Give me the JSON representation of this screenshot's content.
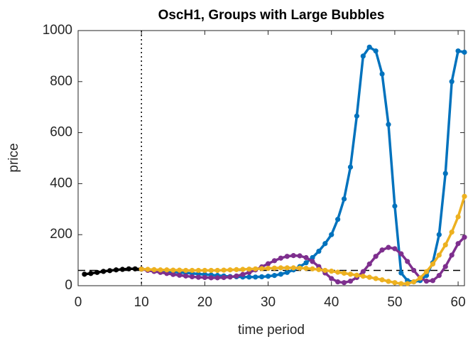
{
  "chart_data": {
    "type": "line",
    "title": "OscH1, Groups with Large Bubbles",
    "x_label": "time period",
    "y_label": "price",
    "xlim": [
      0,
      61
    ],
    "ylim": [
      0,
      1000
    ],
    "xticks": [
      0,
      10,
      20,
      30,
      40,
      50,
      60
    ],
    "yticks": [
      0,
      200,
      400,
      600,
      800,
      1000
    ],
    "reference_line": 60,
    "vertical_line": 10,
    "series": [
      {
        "color": "#000000",
        "x": [
          1,
          2,
          3,
          4,
          5,
          6,
          7,
          8,
          9,
          10
        ],
        "values": [
          45,
          48,
          52,
          56,
          59,
          62,
          64,
          66,
          66,
          65
        ]
      },
      {
        "color": "#0072BD",
        "x": [
          10,
          11,
          12,
          13,
          14,
          15,
          16,
          17,
          18,
          19,
          20,
          21,
          22,
          23,
          24,
          25,
          26,
          27,
          28,
          29,
          30,
          31,
          32,
          33,
          34,
          35,
          36,
          37,
          38,
          39,
          40,
          41,
          42,
          43,
          44,
          45,
          46,
          47,
          48,
          49,
          50,
          51,
          52,
          53,
          54,
          55,
          56,
          57,
          58,
          59,
          60,
          61
        ],
        "values": [
          65,
          62,
          60,
          58,
          56,
          54,
          52,
          50,
          48,
          46,
          44,
          42,
          40,
          38,
          36,
          35,
          34,
          34,
          34,
          35,
          37,
          40,
          45,
          52,
          62,
          75,
          90,
          110,
          135,
          165,
          200,
          260,
          340,
          465,
          665,
          900,
          935,
          920,
          830,
          632,
          312,
          50,
          20,
          15,
          20,
          40,
          90,
          200,
          440,
          800,
          920,
          915
        ]
      },
      {
        "color": "#7E2F8E",
        "x": [
          10,
          11,
          12,
          13,
          14,
          15,
          16,
          17,
          18,
          19,
          20,
          21,
          22,
          23,
          24,
          25,
          26,
          27,
          28,
          29,
          30,
          31,
          32,
          33,
          34,
          35,
          36,
          37,
          38,
          39,
          40,
          41,
          42,
          43,
          44,
          45,
          46,
          47,
          48,
          49,
          50,
          51,
          52,
          53,
          54,
          55,
          56,
          57,
          58,
          59,
          60,
          61
        ],
        "values": [
          65,
          60,
          56,
          52,
          48,
          44,
          41,
          38,
          35,
          33,
          32,
          31,
          31,
          32,
          34,
          38,
          44,
          52,
          62,
          74,
          86,
          98,
          108,
          115,
          118,
          117,
          110,
          95,
          75,
          50,
          28,
          15,
          12,
          18,
          32,
          55,
          85,
          115,
          140,
          150,
          145,
          125,
          95,
          60,
          30,
          18,
          20,
          40,
          75,
          120,
          165,
          190
        ]
      },
      {
        "color": "#EDB120",
        "x": [
          10,
          11,
          12,
          13,
          14,
          15,
          16,
          17,
          18,
          19,
          20,
          21,
          22,
          23,
          24,
          25,
          26,
          27,
          28,
          29,
          30,
          31,
          32,
          33,
          34,
          35,
          36,
          37,
          38,
          39,
          40,
          41,
          42,
          43,
          44,
          45,
          46,
          47,
          48,
          49,
          50,
          51,
          52,
          53,
          54,
          55,
          56,
          57,
          58,
          59,
          60,
          61
        ],
        "values": [
          65,
          64,
          63,
          62,
          62,
          61,
          61,
          60,
          60,
          60,
          60,
          60,
          60,
          61,
          62,
          63,
          64,
          65,
          66,
          67,
          68,
          69,
          70,
          70,
          70,
          69,
          68,
          66,
          63,
          60,
          57,
          53,
          49,
          45,
          41,
          37,
          33,
          28,
          23,
          17,
          12,
          8,
          8,
          15,
          30,
          55,
          85,
          120,
          160,
          210,
          270,
          350
        ]
      }
    ]
  }
}
